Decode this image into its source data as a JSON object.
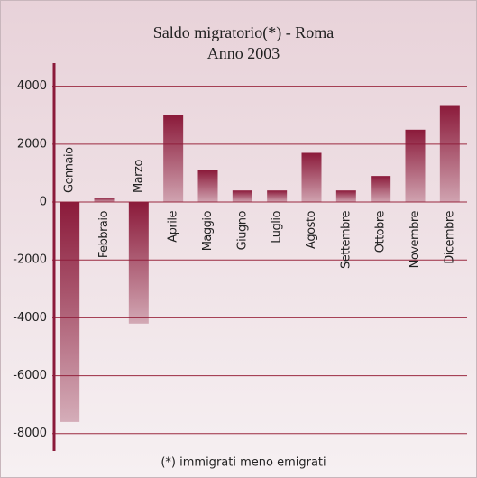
{
  "chart_data": {
    "type": "bar",
    "title": "Saldo migratorio(*) - Roma",
    "subtitle": "Anno 2003",
    "footnote": "(*) immigrati meno emigrati",
    "categories": [
      "Gennaio",
      "Febbraio",
      "Marzo",
      "Aprile",
      "Maggio",
      "Giugno",
      "Luglio",
      "Agosto",
      "Settembre",
      "Ottobre",
      "Novembre",
      "Dicembre"
    ],
    "values": [
      -7600,
      150,
      -4200,
      3000,
      1100,
      400,
      400,
      1700,
      400,
      900,
      2500,
      3350
    ],
    "color": "#8b1a3a",
    "ylim": [
      -8600,
      4800
    ],
    "yticks": [
      -8000,
      -6000,
      -4000,
      -2000,
      0,
      2000,
      4000
    ],
    "grid": true
  }
}
